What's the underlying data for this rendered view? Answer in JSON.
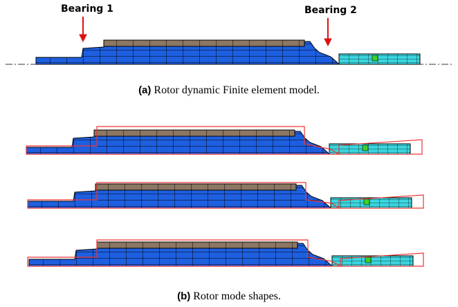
{
  "figure": {
    "annotations": [
      "Bearing 1",
      "Bearing 2"
    ],
    "subfigures": [
      {
        "label": "(a)",
        "caption": "Rotor dynamic Finite element model."
      },
      {
        "label": "(b)",
        "caption": "Rotor mode shapes."
      }
    ]
  }
}
